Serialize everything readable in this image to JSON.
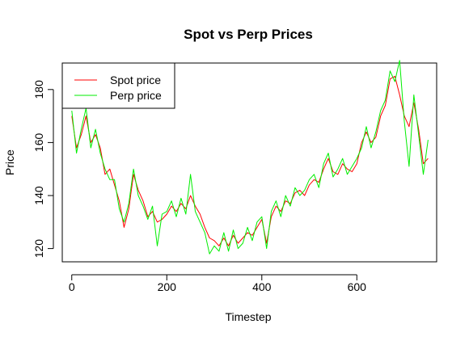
{
  "chart_data": {
    "type": "line",
    "title": "Spot vs Perp Prices",
    "xlabel": "Timestep",
    "ylabel": "Price",
    "xlim": [
      -20,
      768
    ],
    "ylim": [
      115,
      190
    ],
    "xticks": [
      0,
      200,
      400,
      600
    ],
    "yticks": [
      120,
      140,
      160,
      180
    ],
    "xtick_labels": [
      "0",
      "200",
      "400",
      "600"
    ],
    "ytick_labels": [
      "120",
      "140",
      "160",
      "180"
    ],
    "legend_position": "top-left",
    "grid": false,
    "series": [
      {
        "name": "Spot price",
        "color": "#ff0000",
        "x": [
          0,
          10,
          20,
          30,
          40,
          50,
          60,
          70,
          80,
          90,
          100,
          110,
          120,
          130,
          140,
          150,
          160,
          170,
          180,
          190,
          200,
          210,
          220,
          230,
          240,
          250,
          260,
          270,
          280,
          290,
          300,
          310,
          320,
          330,
          340,
          350,
          360,
          370,
          380,
          390,
          400,
          410,
          420,
          430,
          440,
          450,
          460,
          470,
          480,
          490,
          500,
          510,
          520,
          530,
          540,
          550,
          560,
          570,
          580,
          590,
          600,
          610,
          620,
          630,
          640,
          650,
          660,
          670,
          680,
          690,
          700,
          710,
          720,
          730,
          740,
          750
        ],
        "values": [
          170,
          158,
          163,
          170,
          160,
          163,
          158,
          148,
          150,
          144,
          138,
          128,
          135,
          148,
          142,
          138,
          132,
          134,
          130,
          131,
          133,
          136,
          134,
          137,
          135,
          140,
          136,
          133,
          128,
          124,
          123,
          121,
          124,
          121,
          125,
          122,
          124,
          126,
          125,
          128,
          131,
          122,
          132,
          136,
          134,
          138,
          137,
          141,
          142,
          140,
          144,
          146,
          145,
          150,
          154,
          149,
          148,
          152,
          150,
          149,
          152,
          160,
          164,
          160,
          162,
          170,
          174,
          184,
          185,
          178,
          170,
          166,
          175,
          165,
          152,
          154
        ]
      },
      {
        "name": "Perp price",
        "color": "#00ee00",
        "x": [
          0,
          10,
          20,
          30,
          40,
          50,
          60,
          70,
          80,
          90,
          100,
          110,
          120,
          130,
          140,
          150,
          160,
          170,
          180,
          190,
          200,
          210,
          220,
          230,
          240,
          250,
          260,
          270,
          280,
          290,
          300,
          310,
          320,
          330,
          340,
          350,
          360,
          370,
          380,
          390,
          400,
          410,
          420,
          430,
          440,
          450,
          460,
          470,
          480,
          490,
          500,
          510,
          520,
          530,
          540,
          550,
          560,
          570,
          580,
          590,
          600,
          610,
          620,
          630,
          640,
          650,
          660,
          670,
          680,
          690,
          700,
          710,
          720,
          730,
          740,
          750
        ],
        "values": [
          172,
          156,
          165,
          173,
          158,
          165,
          156,
          150,
          146,
          146,
          135,
          130,
          137,
          150,
          140,
          136,
          131,
          136,
          121,
          133,
          134,
          138,
          132,
          139,
          133,
          148,
          134,
          130,
          126,
          118,
          121,
          119,
          126,
          119,
          127,
          120,
          122,
          128,
          123,
          130,
          132,
          120,
          134,
          138,
          132,
          140,
          136,
          143,
          140,
          142,
          146,
          148,
          143,
          152,
          156,
          147,
          150,
          154,
          148,
          151,
          154,
          158,
          166,
          158,
          164,
          172,
          176,
          187,
          183,
          191,
          168,
          151,
          178,
          163,
          148,
          161
        ]
      }
    ]
  }
}
